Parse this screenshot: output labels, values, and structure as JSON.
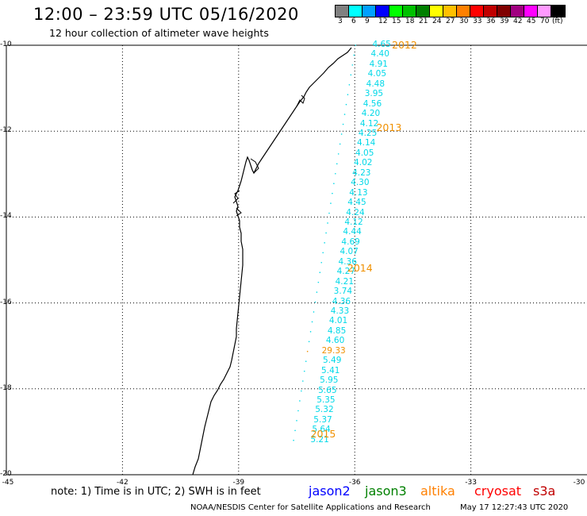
{
  "header": {
    "title": "12:00 – 23:59 UTC 05/16/2020",
    "subtitle": "12 hour collection of altimeter wave heights"
  },
  "colorbar": {
    "colors": [
      "#808080",
      "#00ffff",
      "#00a0ff",
      "#0000ff",
      "#00ff00",
      "#00c000",
      "#008000",
      "#ffff00",
      "#ffc000",
      "#ff8000",
      "#ff0000",
      "#c00000",
      "#800000",
      "#a00080",
      "#ff00ff",
      "#ff99ff",
      "#000000"
    ],
    "labels": [
      "3",
      "6",
      "9",
      "12",
      "15",
      "18",
      "21",
      "24",
      "27",
      "30",
      "33",
      "36",
      "39",
      "42",
      "45",
      "70",
      "(ft)"
    ]
  },
  "axes": {
    "y_ticks": [
      "-10",
      "-12",
      "-14",
      "-16",
      "-18",
      "-20"
    ],
    "x_ticks": [
      "-45",
      "-42",
      "-39",
      "-36",
      "-33",
      "-30"
    ],
    "lat_range": [
      -20,
      -10
    ],
    "lon_range": [
      -45,
      -30
    ],
    "grid": "dotted"
  },
  "track": {
    "color": "#00d8e8",
    "outlier_color": "#f09000",
    "points": [
      {
        "lon": -35.98,
        "lat": -10.0,
        "value": "4.65"
      },
      {
        "lon": -36.02,
        "lat": -10.23,
        "value": "4.40"
      },
      {
        "lon": -36.06,
        "lat": -10.46,
        "value": "4.91"
      },
      {
        "lon": -36.1,
        "lat": -10.69,
        "value": "4.05"
      },
      {
        "lon": -36.14,
        "lat": -10.92,
        "value": "4.48"
      },
      {
        "lon": -36.18,
        "lat": -11.15,
        "value": "3.95"
      },
      {
        "lon": -36.22,
        "lat": -11.38,
        "value": "4.56"
      },
      {
        "lon": -36.26,
        "lat": -11.61,
        "value": "4.20"
      },
      {
        "lon": -36.3,
        "lat": -11.84,
        "value": "4.12"
      },
      {
        "lon": -36.34,
        "lat": -12.07,
        "value": "4.25"
      },
      {
        "lon": -36.38,
        "lat": -12.3,
        "value": "4.14"
      },
      {
        "lon": -36.42,
        "lat": -12.53,
        "value": "4.05"
      },
      {
        "lon": -36.46,
        "lat": -12.76,
        "value": "4.02"
      },
      {
        "lon": -36.5,
        "lat": -12.99,
        "value": "4.23"
      },
      {
        "lon": -36.54,
        "lat": -13.22,
        "value": "4.30"
      },
      {
        "lon": -36.58,
        "lat": -13.45,
        "value": "4.13"
      },
      {
        "lon": -36.62,
        "lat": -13.68,
        "value": "4.45"
      },
      {
        "lon": -36.66,
        "lat": -13.91,
        "value": "4.24"
      },
      {
        "lon": -36.7,
        "lat": -14.14,
        "value": "4.12"
      },
      {
        "lon": -36.74,
        "lat": -14.37,
        "value": "4.44"
      },
      {
        "lon": -36.78,
        "lat": -14.6,
        "value": "4.69"
      },
      {
        "lon": -36.82,
        "lat": -14.83,
        "value": "4.07"
      },
      {
        "lon": -36.86,
        "lat": -15.06,
        "value": "4.36"
      },
      {
        "lon": -36.9,
        "lat": -15.29,
        "value": "4.27"
      },
      {
        "lon": -36.94,
        "lat": -15.52,
        "value": "4.21"
      },
      {
        "lon": -36.98,
        "lat": -15.75,
        "value": "3.74"
      },
      {
        "lon": -37.02,
        "lat": -15.98,
        "value": "4.36"
      },
      {
        "lon": -37.06,
        "lat": -16.21,
        "value": "4.33"
      },
      {
        "lon": -37.1,
        "lat": -16.44,
        "value": "4.01"
      },
      {
        "lon": -37.14,
        "lat": -16.67,
        "value": "4.85"
      },
      {
        "lon": -37.18,
        "lat": -16.9,
        "value": "4.60"
      },
      {
        "lon": -37.22,
        "lat": -17.13,
        "value": "29.33",
        "outlier": true
      },
      {
        "lon": -37.26,
        "lat": -17.36,
        "value": "5.49"
      },
      {
        "lon": -37.3,
        "lat": -17.59,
        "value": "5.41"
      },
      {
        "lon": -37.34,
        "lat": -17.82,
        "value": "5.95"
      },
      {
        "lon": -37.38,
        "lat": -18.05,
        "value": "5.65"
      },
      {
        "lon": -37.42,
        "lat": -18.28,
        "value": "5.35"
      },
      {
        "lon": -37.46,
        "lat": -18.51,
        "value": "5.32"
      },
      {
        "lon": -37.5,
        "lat": -18.74,
        "value": "5.37"
      },
      {
        "lon": -37.54,
        "lat": -18.97,
        "value": "5.64"
      },
      {
        "lon": -37.58,
        "lat": -19.2,
        "value": "5.21"
      }
    ]
  },
  "year_labels": [
    {
      "text": "2012",
      "lon": -35.0,
      "lat": -10.0
    },
    {
      "text": "2013",
      "lon": -35.4,
      "lat": -11.92
    },
    {
      "text": "2014",
      "lon": -36.15,
      "lat": -15.19
    },
    {
      "text": "2015",
      "lon": -37.1,
      "lat": -19.06
    }
  ],
  "footer": {
    "note": "note: 1) Time is in UTC; 2) SWH is in feet",
    "satellites": [
      {
        "name": "jason2",
        "color": "#0000ff"
      },
      {
        "name": "jason3",
        "color": "#008000"
      },
      {
        "name": "altika",
        "color": "#ff8000"
      },
      {
        "name": "cryosat",
        "color": "#ff0000"
      },
      {
        "name": "s3a",
        "color": "#c00000"
      }
    ],
    "credit": "NOAA/NESDIS Center for Satellite Applications and Research",
    "timestamp": "May 17 12:27:43 UTC 2020"
  }
}
